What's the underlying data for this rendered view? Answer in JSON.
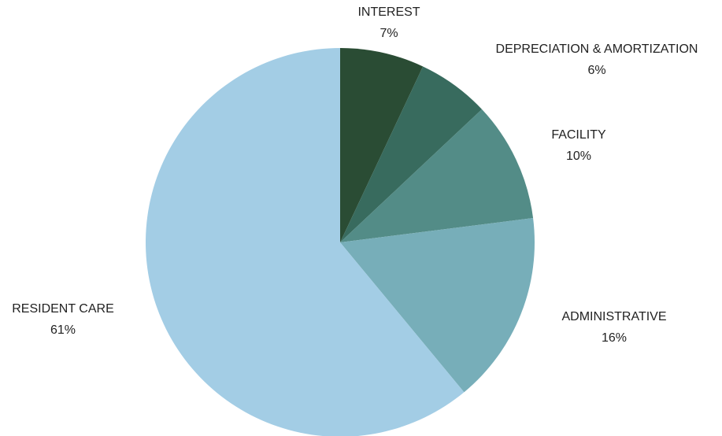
{
  "chart_data": {
    "type": "pie",
    "slices": [
      {
        "name": "INTEREST",
        "value": 7,
        "label": "7%",
        "color": "#2a4c34"
      },
      {
        "name": "DEPRECIATION & AMORTIZATION",
        "value": 6,
        "label": "6%",
        "color": "#386b5e"
      },
      {
        "name": "FACILITY",
        "value": 10,
        "label": "10%",
        "color": "#538c87"
      },
      {
        "name": "ADMINISTRATIVE",
        "value": 16,
        "label": "16%",
        "color": "#77aeb9"
      },
      {
        "name": "RESIDENT CARE",
        "value": 61,
        "label": "61%",
        "color": "#a3cde5"
      }
    ],
    "start_angle": "12 o'clock",
    "direction": "clockwise",
    "legend": "none"
  }
}
